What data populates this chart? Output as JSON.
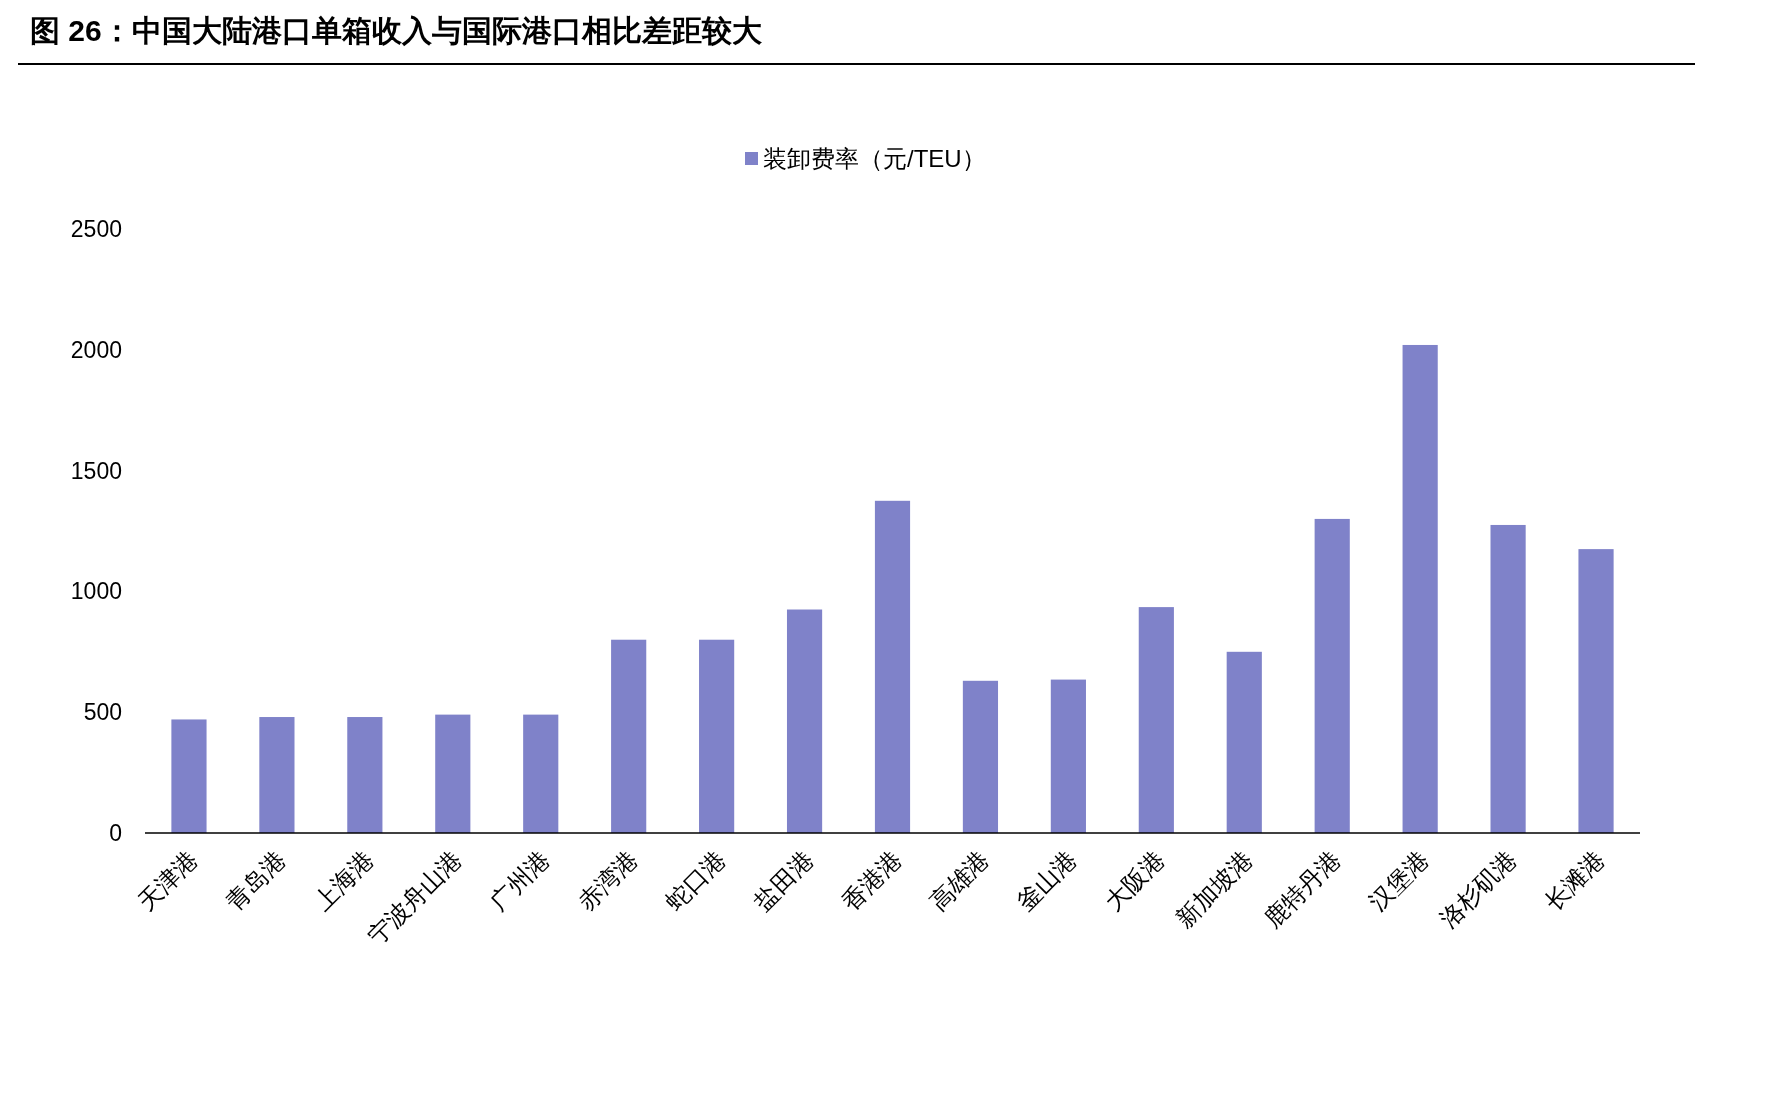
{
  "chart_data": {
    "type": "bar",
    "title": "图 26：中国大陆港口单箱收入与国际港口相比差距较大",
    "categories": [
      "天津港",
      "青岛港",
      "上海港",
      "宁波舟山港",
      "广州港",
      "赤湾港",
      "蛇口港",
      "盐田港",
      "香港港",
      "高雄港",
      "釜山港",
      "大阪港",
      "新加坡港",
      "鹿特丹港",
      "汉堡港",
      "洛杉矶港",
      "长滩港"
    ],
    "series": [
      {
        "name": "装卸费率（元/TEU）",
        "color": "#7f82c9",
        "values": [
          470,
          480,
          480,
          490,
          490,
          800,
          800,
          925,
          1375,
          630,
          635,
          935,
          750,
          1300,
          2020,
          1275,
          1175
        ]
      }
    ],
    "ylim": [
      0,
      2500
    ],
    "yticks": [
      0,
      500,
      1000,
      1500,
      2000,
      2500
    ],
    "grid": false,
    "legend": "top"
  }
}
